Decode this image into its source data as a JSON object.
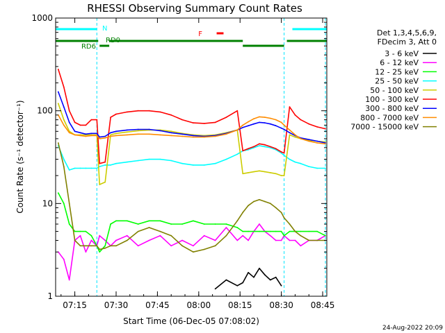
{
  "chart_data": {
    "type": "line",
    "title": "RHESSI Observing Summary Count Rates",
    "xlabel": "Start Time (06-Dec-05 07:08:02)",
    "ylabel": "Count Rate (s⁻¹ detector⁻¹)",
    "xlim": [
      "07:08:02",
      "08:46:30"
    ],
    "ylim": [
      1,
      1000
    ],
    "yscale": "log",
    "x_ticks": [
      "07:15",
      "07:30",
      "07:45",
      "08:00",
      "08:15",
      "08:30",
      "08:45"
    ],
    "y_ticks": [
      "1",
      "10",
      "100",
      "1000"
    ],
    "grid": false,
    "legend_position": "right",
    "legend_header": [
      "Det 1,3,4,5,6,9,",
      "FDecim 3, Att 0"
    ],
    "timestamp": "24-Aug-2022 20:09",
    "flag_bars": [
      {
        "label": "N",
        "color": "#00ffff",
        "segments": [
          [
            "07:08:02",
            "07:23:00"
          ],
          [
            "08:34:00",
            "08:46:30"
          ]
        ]
      },
      {
        "label": "F",
        "color": "#ff0000",
        "segments": [
          [
            "08:06:30",
            "08:09:00"
          ]
        ]
      },
      {
        "label": "RD0",
        "color": "#008000",
        "segments": [
          [
            "07:08:02",
            "07:23:30"
          ],
          [
            "07:27:30",
            "08:16:00"
          ],
          [
            "08:32:00",
            "08:46:30"
          ]
        ]
      },
      {
        "label": "RD6",
        "color": "#008000",
        "segments": [
          [
            "07:24:00",
            "07:27:30"
          ],
          [
            "08:16:00",
            "08:31:00"
          ]
        ]
      }
    ],
    "vlines": [
      "07:23:00",
      "08:31:00",
      "08:46:00"
    ],
    "x": [
      "07:09",
      "07:11",
      "07:13",
      "07:15",
      "07:17",
      "07:19",
      "07:21",
      "07:23",
      "07:24",
      "07:26",
      "07:28",
      "07:30",
      "07:34",
      "07:38",
      "07:42",
      "07:46",
      "07:50",
      "07:54",
      "07:58",
      "08:02",
      "08:06",
      "08:10",
      "08:14",
      "08:16",
      "08:18",
      "08:20",
      "08:22",
      "08:24",
      "08:26",
      "08:28",
      "08:30",
      "08:31",
      "08:33",
      "08:35",
      "08:37",
      "08:40",
      "08:43",
      "08:46"
    ],
    "series": [
      {
        "name": "3 - 6 keV",
        "color": "#000000",
        "values": [
          null,
          null,
          null,
          null,
          null,
          null,
          null,
          null,
          null,
          null,
          null,
          null,
          null,
          null,
          null,
          null,
          null,
          null,
          null,
          null,
          1.2,
          1.5,
          1.3,
          1.4,
          1.8,
          1.6,
          2.0,
          1.7,
          1.5,
          1.6,
          1.3,
          null,
          null,
          null,
          null,
          null,
          null,
          null
        ]
      },
      {
        "name": "6 - 12 keV",
        "color": "#ff00ff",
        "values": [
          3.0,
          2.5,
          1.5,
          4.0,
          4.5,
          3.0,
          4.0,
          3.5,
          4.5,
          4.0,
          3.5,
          4.0,
          4.5,
          3.5,
          4.0,
          4.5,
          3.5,
          4.0,
          3.5,
          4.5,
          4.0,
          5.5,
          4.0,
          4.5,
          4.0,
          5.0,
          6.0,
          5.0,
          4.5,
          4.0,
          4.0,
          4.5,
          4.0,
          4.0,
          3.5,
          4.0,
          4.0,
          4.5
        ]
      },
      {
        "name": "12 - 25 keV",
        "color": "#00ff00",
        "values": [
          13.0,
          10.0,
          6.0,
          5.0,
          5.0,
          5.0,
          4.5,
          3.5,
          3.0,
          3.5,
          6.0,
          6.5,
          6.5,
          6.0,
          6.5,
          6.5,
          6.0,
          6.0,
          6.5,
          6.0,
          6.0,
          6.0,
          5.5,
          5.0,
          5.0,
          5.0,
          5.0,
          5.0,
          5.0,
          5.0,
          5.0,
          4.5,
          5.0,
          5.0,
          5.0,
          5.0,
          5.0,
          4.5
        ]
      },
      {
        "name": "25 - 50 keV",
        "color": "#00ffff",
        "values": [
          42.0,
          30.0,
          23.0,
          24.0,
          24.0,
          24.0,
          24.0,
          24.0,
          25.0,
          26.0,
          26.0,
          27.0,
          28.0,
          29.0,
          30.0,
          30.0,
          29.0,
          27.0,
          26.0,
          26.0,
          27.0,
          30.0,
          34.0,
          37.0,
          38.0,
          40.0,
          42.0,
          41.0,
          40.0,
          38.0,
          35.0,
          33.0,
          30.0,
          28.0,
          27.0,
          25.0,
          24.0,
          24.0
        ]
      },
      {
        "name": "50 - 100 keV",
        "color": "#cccc00",
        "values": [
          120.0,
          80.0,
          60.0,
          55.0,
          55.0,
          55.0,
          55.0,
          55.0,
          16.0,
          17.0,
          55.0,
          57.0,
          59.0,
          61.0,
          62.0,
          62.0,
          60.0,
          57.0,
          55.0,
          54.0,
          55.0,
          58.0,
          62.0,
          21.0,
          21.5,
          22.0,
          22.5,
          22.0,
          21.5,
          21.0,
          20.0,
          20.0,
          55.0,
          52.0,
          50.0,
          48.0,
          47.0,
          46.0
        ]
      },
      {
        "name": "100 - 300 keV",
        "color": "#ff0000",
        "values": [
          280.0,
          180.0,
          100.0,
          75.0,
          70.0,
          70.0,
          80.0,
          80.0,
          27.0,
          28.0,
          85.0,
          92.0,
          97.0,
          100.0,
          100.0,
          97.0,
          90.0,
          80.0,
          74.0,
          73.0,
          75.0,
          85.0,
          100.0,
          37.0,
          39.0,
          41.0,
          44.0,
          43.0,
          41.0,
          39.0,
          36.0,
          35.0,
          110.0,
          90.0,
          80.0,
          72.0,
          67.0,
          64.0
        ]
      },
      {
        "name": "300 - 800 keV",
        "color": "#0000ff",
        "values": [
          160.0,
          110.0,
          75.0,
          60.0,
          58.0,
          56.0,
          57.0,
          57.0,
          52.0,
          53.0,
          58.0,
          60.0,
          62.0,
          63.0,
          63.0,
          61.0,
          58.0,
          56.0,
          54.0,
          53.0,
          54.0,
          57.0,
          62.0,
          66.0,
          69.0,
          72.0,
          75.0,
          74.0,
          72.0,
          69.0,
          65.0,
          63.0,
          58.0,
          54.0,
          51.0,
          49.0,
          47.0,
          45.0
        ]
      },
      {
        "name": "800 - 7000 keV",
        "color": "#ff8c00",
        "values": [
          90.0,
          70.0,
          58.0,
          55.0,
          54.0,
          53.0,
          54.0,
          54.0,
          50.0,
          51.0,
          53.0,
          54.0,
          55.0,
          56.0,
          56.0,
          55.0,
          54.0,
          53.0,
          52.0,
          52.0,
          53.0,
          56.0,
          62.0,
          70.0,
          76.0,
          82.0,
          86.0,
          85.0,
          83.0,
          80.0,
          75.0,
          70.0,
          62.0,
          55.0,
          50.0,
          47.0,
          45.0,
          44.0
        ]
      },
      {
        "name": "7000 - 15000 keV",
        "color": "#808000",
        "values": [
          45.0,
          25.0,
          10.0,
          4.0,
          3.5,
          3.5,
          3.5,
          3.5,
          3.2,
          3.3,
          3.5,
          3.5,
          4.0,
          5.0,
          5.5,
          5.0,
          4.5,
          3.5,
          3.0,
          3.2,
          3.5,
          4.5,
          6.5,
          8.0,
          9.5,
          10.5,
          11.0,
          10.5,
          10.0,
          9.0,
          8.0,
          7.0,
          6.0,
          5.0,
          4.5,
          4.0,
          4.0,
          4.0
        ]
      }
    ]
  }
}
